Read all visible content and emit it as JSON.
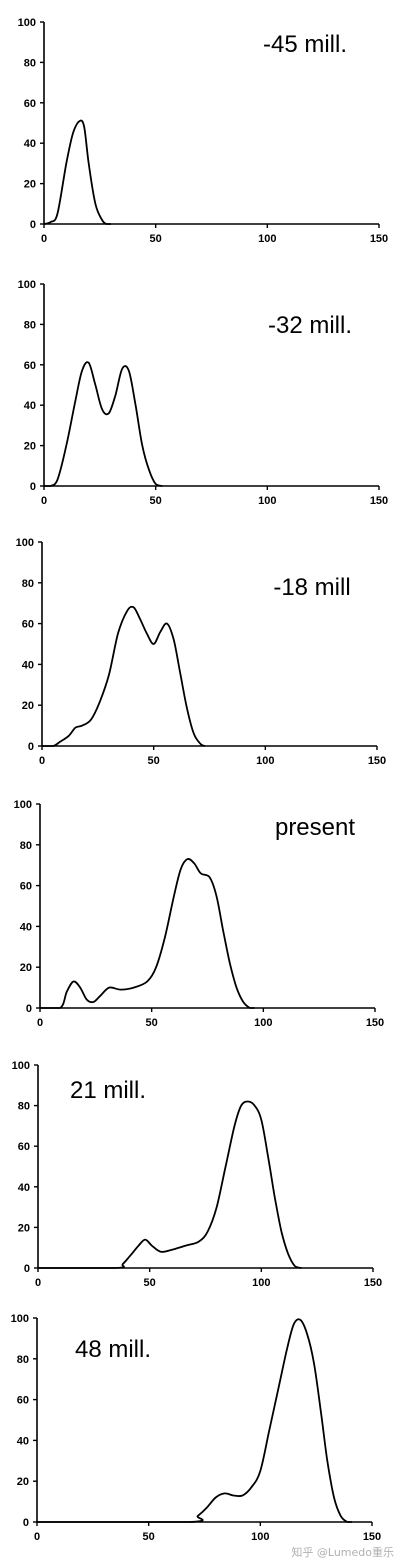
{
  "chart_data": [
    {
      "type": "line",
      "title": "-45 mill.",
      "xlim": [
        0,
        150
      ],
      "ylim": [
        0,
        100
      ],
      "xticks": [
        0,
        50,
        100,
        150
      ],
      "yticks": [
        0,
        20,
        40,
        60,
        80,
        100
      ],
      "grid": false,
      "x": [
        0,
        3,
        6,
        10,
        13,
        16,
        18,
        20,
        23,
        26,
        28,
        30
      ],
      "y": [
        0,
        1,
        5,
        30,
        45,
        51,
        48,
        30,
        10,
        2,
        0,
        0
      ]
    },
    {
      "type": "line",
      "title": "-32 mill.",
      "xlim": [
        0,
        150
      ],
      "ylim": [
        0,
        100
      ],
      "xticks": [
        0,
        50,
        100,
        150
      ],
      "yticks": [
        0,
        20,
        40,
        60,
        80,
        100
      ],
      "grid": false,
      "x": [
        0,
        3,
        6,
        10,
        14,
        17,
        20,
        23,
        26,
        29,
        32,
        35,
        38,
        41,
        44,
        47,
        50,
        53
      ],
      "y": [
        0,
        0,
        3,
        20,
        42,
        57,
        61,
        50,
        38,
        36,
        45,
        58,
        57,
        40,
        20,
        8,
        1,
        0
      ]
    },
    {
      "type": "line",
      "title": "-18 mill",
      "xlim": [
        0,
        150
      ],
      "ylim": [
        0,
        100
      ],
      "xticks": [
        0,
        50,
        100,
        150
      ],
      "yticks": [
        0,
        20,
        40,
        60,
        80,
        100
      ],
      "grid": false,
      "x": [
        0,
        5,
        8,
        12,
        15,
        18,
        22,
        26,
        30,
        34,
        38,
        41,
        44,
        47,
        50,
        53,
        56,
        59,
        62,
        65,
        68,
        71,
        73
      ],
      "y": [
        0,
        0,
        2,
        5,
        9,
        10,
        13,
        22,
        35,
        55,
        66,
        68,
        62,
        55,
        50,
        56,
        60,
        52,
        35,
        18,
        6,
        1,
        0
      ]
    },
    {
      "type": "line",
      "title": "present",
      "xlim": [
        0,
        150
      ],
      "ylim": [
        0,
        100
      ],
      "xticks": [
        0,
        50,
        100,
        150
      ],
      "yticks": [
        0,
        20,
        40,
        60,
        80,
        100
      ],
      "grid": false,
      "x": [
        0,
        9,
        12,
        15,
        18,
        21,
        24,
        27,
        31,
        36,
        42,
        48,
        52,
        56,
        60,
        63,
        66,
        69,
        72,
        76,
        79,
        82,
        85,
        88,
        91,
        94,
        96
      ],
      "y": [
        0,
        0,
        8,
        13,
        10,
        4,
        3,
        6,
        10,
        9,
        10,
        13,
        20,
        35,
        55,
        68,
        73,
        71,
        66,
        64,
        55,
        38,
        22,
        10,
        3,
        0,
        0
      ]
    },
    {
      "type": "line",
      "title": "21 mill.",
      "xlim": [
        0,
        150
      ],
      "ylim": [
        0,
        100
      ],
      "xticks": [
        0,
        50,
        100,
        150
      ],
      "yticks": [
        0,
        20,
        40,
        60,
        80,
        100
      ],
      "grid": false,
      "x": [
        0,
        35,
        38,
        42,
        45,
        48,
        51,
        55,
        60,
        66,
        72,
        76,
        80,
        84,
        88,
        91,
        94,
        97,
        100,
        103,
        106,
        109,
        112,
        115,
        118
      ],
      "y": [
        0,
        0,
        2,
        7,
        11,
        14,
        11,
        8,
        9,
        11,
        13,
        18,
        30,
        50,
        70,
        80,
        82,
        80,
        73,
        55,
        35,
        18,
        7,
        1,
        0
      ]
    },
    {
      "type": "line",
      "title": "48 mill.",
      "xlim": [
        0,
        150
      ],
      "ylim": [
        0,
        100
      ],
      "xticks": [
        0,
        50,
        100,
        150
      ],
      "yticks": [
        0,
        20,
        40,
        60,
        80,
        100
      ],
      "grid": false,
      "x": [
        0,
        68,
        72,
        76,
        80,
        84,
        88,
        92,
        96,
        100,
        104,
        108,
        112,
        115,
        118,
        121,
        124,
        127,
        130,
        133,
        136,
        139,
        141
      ],
      "y": [
        0,
        0,
        3,
        7,
        12,
        14,
        13,
        13,
        17,
        25,
        45,
        65,
        85,
        97,
        99,
        92,
        78,
        55,
        30,
        12,
        3,
        0,
        0
      ]
    }
  ],
  "watermark": "知乎 @Lumedo重乐"
}
